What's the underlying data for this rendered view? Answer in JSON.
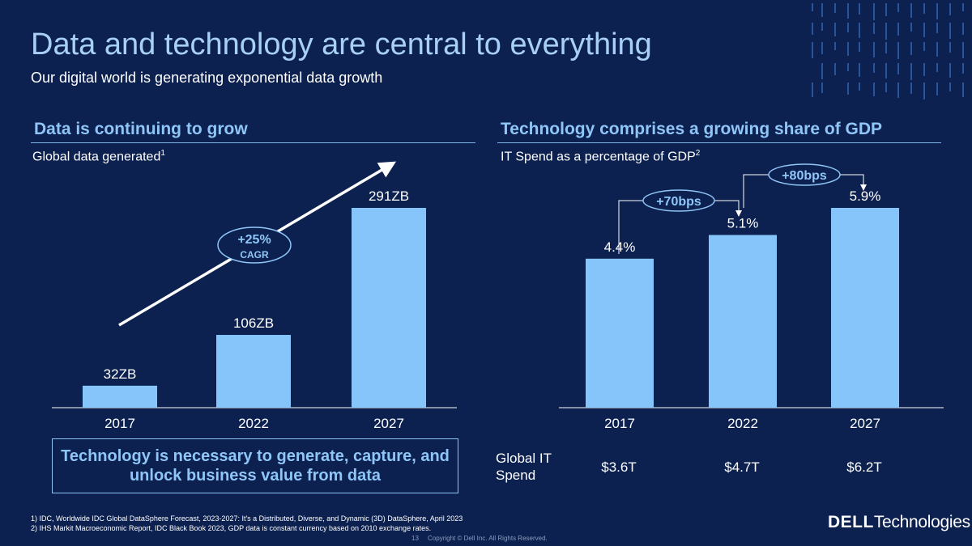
{
  "header": {
    "title": "Data and technology are central to everything",
    "subtitle": "Our digital world is generating exponential data growth"
  },
  "left": {
    "heading": "Data is continuing to grow",
    "subheading": "Global data generated",
    "footnote_ref": "1",
    "cagr_value": "+25%",
    "cagr_label": "CAGR",
    "callout": "Technology is necessary to generate, capture, and unlock business value from data"
  },
  "right": {
    "heading": "Technology comprises a growing share of GDP",
    "subheading": "IT Spend as a percentage of GDP",
    "footnote_ref": "2",
    "bps_1": "+70bps",
    "bps_2": "+80bps",
    "spend_label": "Global IT Spend",
    "spend_values": [
      "$3.6T",
      "$4.7T",
      "$6.2T"
    ]
  },
  "chart_data": [
    {
      "type": "bar",
      "title": "Global data generated",
      "categories": [
        "2017",
        "2022",
        "2027"
      ],
      "values": [
        32,
        106,
        291
      ],
      "labels": [
        "32ZB",
        "106ZB",
        "291ZB"
      ],
      "ylim": [
        0,
        291
      ]
    },
    {
      "type": "bar",
      "title": "IT Spend as a percentage of GDP",
      "categories": [
        "2017",
        "2022",
        "2027"
      ],
      "values": [
        4.4,
        5.1,
        5.9
      ],
      "labels": [
        "4.4%",
        "5.1%",
        "5.9%"
      ],
      "ylim": [
        0,
        5.9
      ]
    }
  ],
  "footnotes": [
    "1) IDC, Worldwide IDC Global DataSphere Forecast, 2023-2027: It's a Distributed, Diverse, and Dynamic (3D) DataSphere, April 2023",
    "2) IHS Markit Macroeconomic Report, IDC Black Book 2023, GDP data is constant currency based on 2010 exchange rates."
  ],
  "page_number": "13",
  "copyright": "Copyright © Dell Inc. All Rights Reserved.",
  "logo": {
    "mark": "DELL",
    "word": "Technologies"
  },
  "colors": {
    "background": "#0c2150",
    "bar": "#85c5fa",
    "accent": "#8fc6f7",
    "title": "#a8d0f5"
  }
}
